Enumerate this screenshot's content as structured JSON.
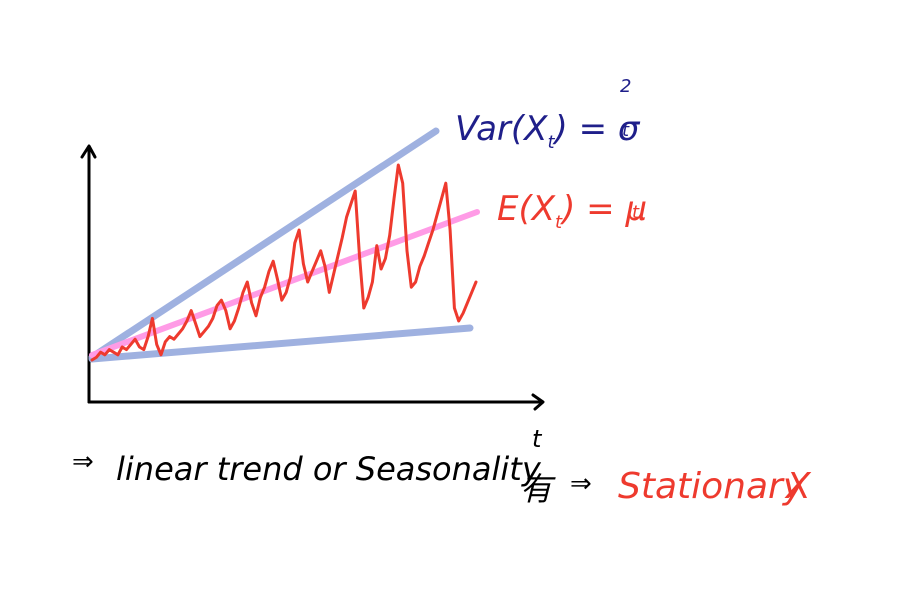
{
  "labels": {
    "variance_main": "Var(X",
    "variance_sub": "t",
    "variance_tail": ") = σ",
    "variance_sigma_sup": "2",
    "variance_sigma_sub": "t",
    "expectation_main": "E(X",
    "expectation_sub": "t",
    "expectation_tail": ") = μ",
    "expectation_mu_sub": "t",
    "axis_x": "t"
  },
  "note": {
    "arrow1": "⇒",
    "text": "linear trend or Seasonality",
    "kanji": "有",
    "arrow2": "⇒",
    "conclusion": "Stationary",
    "cross": "X"
  },
  "colors": {
    "axes": "#000000",
    "envelope": "#9fb1e0",
    "mean": "#ff9be6",
    "series": "#ee3a2e",
    "variance_label": "#1f1f8a",
    "expectation_label": "#ee3a2e",
    "conclusion": "#ee3a2e",
    "text": "#000000"
  },
  "chart_data": {
    "type": "line",
    "series_values": [
      0,
      1,
      3,
      2,
      4,
      3,
      2,
      5,
      4,
      6,
      8,
      5,
      4,
      9,
      16,
      6,
      2,
      7,
      9,
      8,
      10,
      12,
      15,
      19,
      14,
      9,
      11,
      13,
      16,
      21,
      23,
      19,
      12,
      15,
      20,
      26,
      30,
      22,
      17,
      24,
      28,
      34,
      38,
      31,
      23,
      26,
      32,
      45,
      50,
      37,
      30,
      34,
      38,
      42,
      36,
      26,
      33,
      40,
      47,
      55,
      60,
      65,
      40,
      20,
      24,
      30,
      44,
      35,
      39,
      48,
      62,
      75,
      68,
      42,
      28,
      30,
      36,
      40,
      45,
      50,
      56,
      62,
      68,
      50,
      20,
      15,
      18,
      22,
      26,
      30
    ]
  }
}
